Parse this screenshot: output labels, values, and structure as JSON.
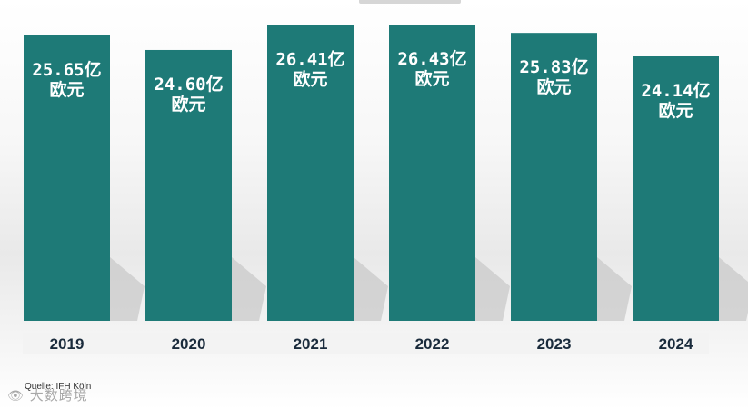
{
  "chart_data": {
    "type": "bar",
    "categories": [
      "2019",
      "2020",
      "2021",
      "2022",
      "2023",
      "2024"
    ],
    "values": [
      25.65,
      24.6,
      26.41,
      26.43,
      25.83,
      24.14
    ],
    "data_labels": [
      [
        "25.65亿",
        "欧元"
      ],
      [
        "24.60亿",
        "欧元"
      ],
      [
        "26.41亿",
        "欧元"
      ],
      [
        "26.43亿",
        "欧元"
      ],
      [
        "25.83亿",
        "欧元"
      ],
      [
        "24.14亿",
        "欧元"
      ]
    ],
    "title": "",
    "xlabel": "",
    "ylabel": "",
    "grid": false,
    "legend": "none",
    "bar_color": "#1e7a77",
    "label_color": "#ffffff"
  },
  "source_text": "Quelle: IFH Köln",
  "watermark": {
    "icon": "eye-logo-icon",
    "text": "大数跨境"
  }
}
